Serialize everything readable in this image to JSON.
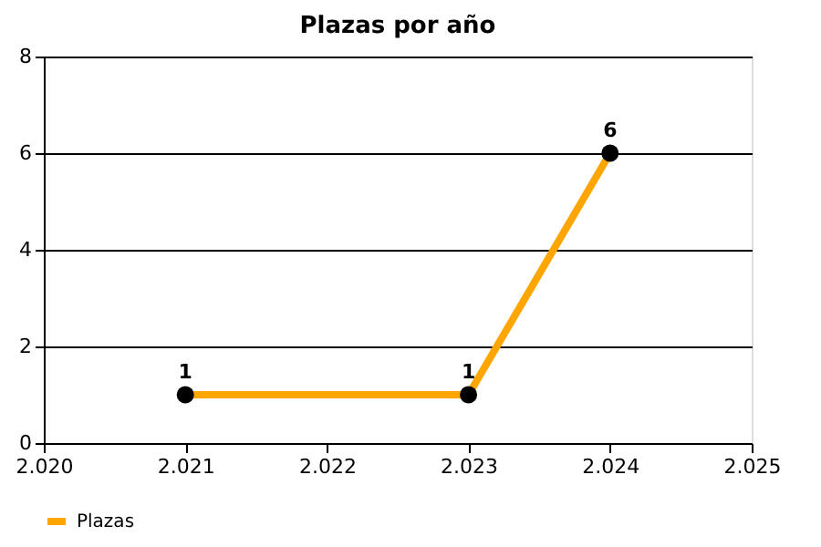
{
  "chart_data": {
    "type": "line",
    "title": "Plazas por año",
    "x": [
      2021,
      2023,
      2024
    ],
    "series": [
      {
        "name": "Plazas",
        "color": "#ffa500",
        "values": [
          1,
          1,
          6
        ]
      }
    ],
    "xlim": [
      2020,
      2025
    ],
    "xticks": [
      {
        "value": 2020,
        "label": "2.020"
      },
      {
        "value": 2021,
        "label": "2.021"
      },
      {
        "value": 2022,
        "label": "2.022"
      },
      {
        "value": 2023,
        "label": "2.023"
      },
      {
        "value": 2024,
        "label": "2.024"
      },
      {
        "value": 2025,
        "label": "2.025"
      }
    ],
    "ylim": [
      0,
      8
    ],
    "yticks": [
      0,
      2,
      4,
      6,
      8
    ],
    "grid": "y",
    "legend": "bottom left",
    "marker": "circle",
    "line_style": "solid",
    "data_labels": true
  }
}
